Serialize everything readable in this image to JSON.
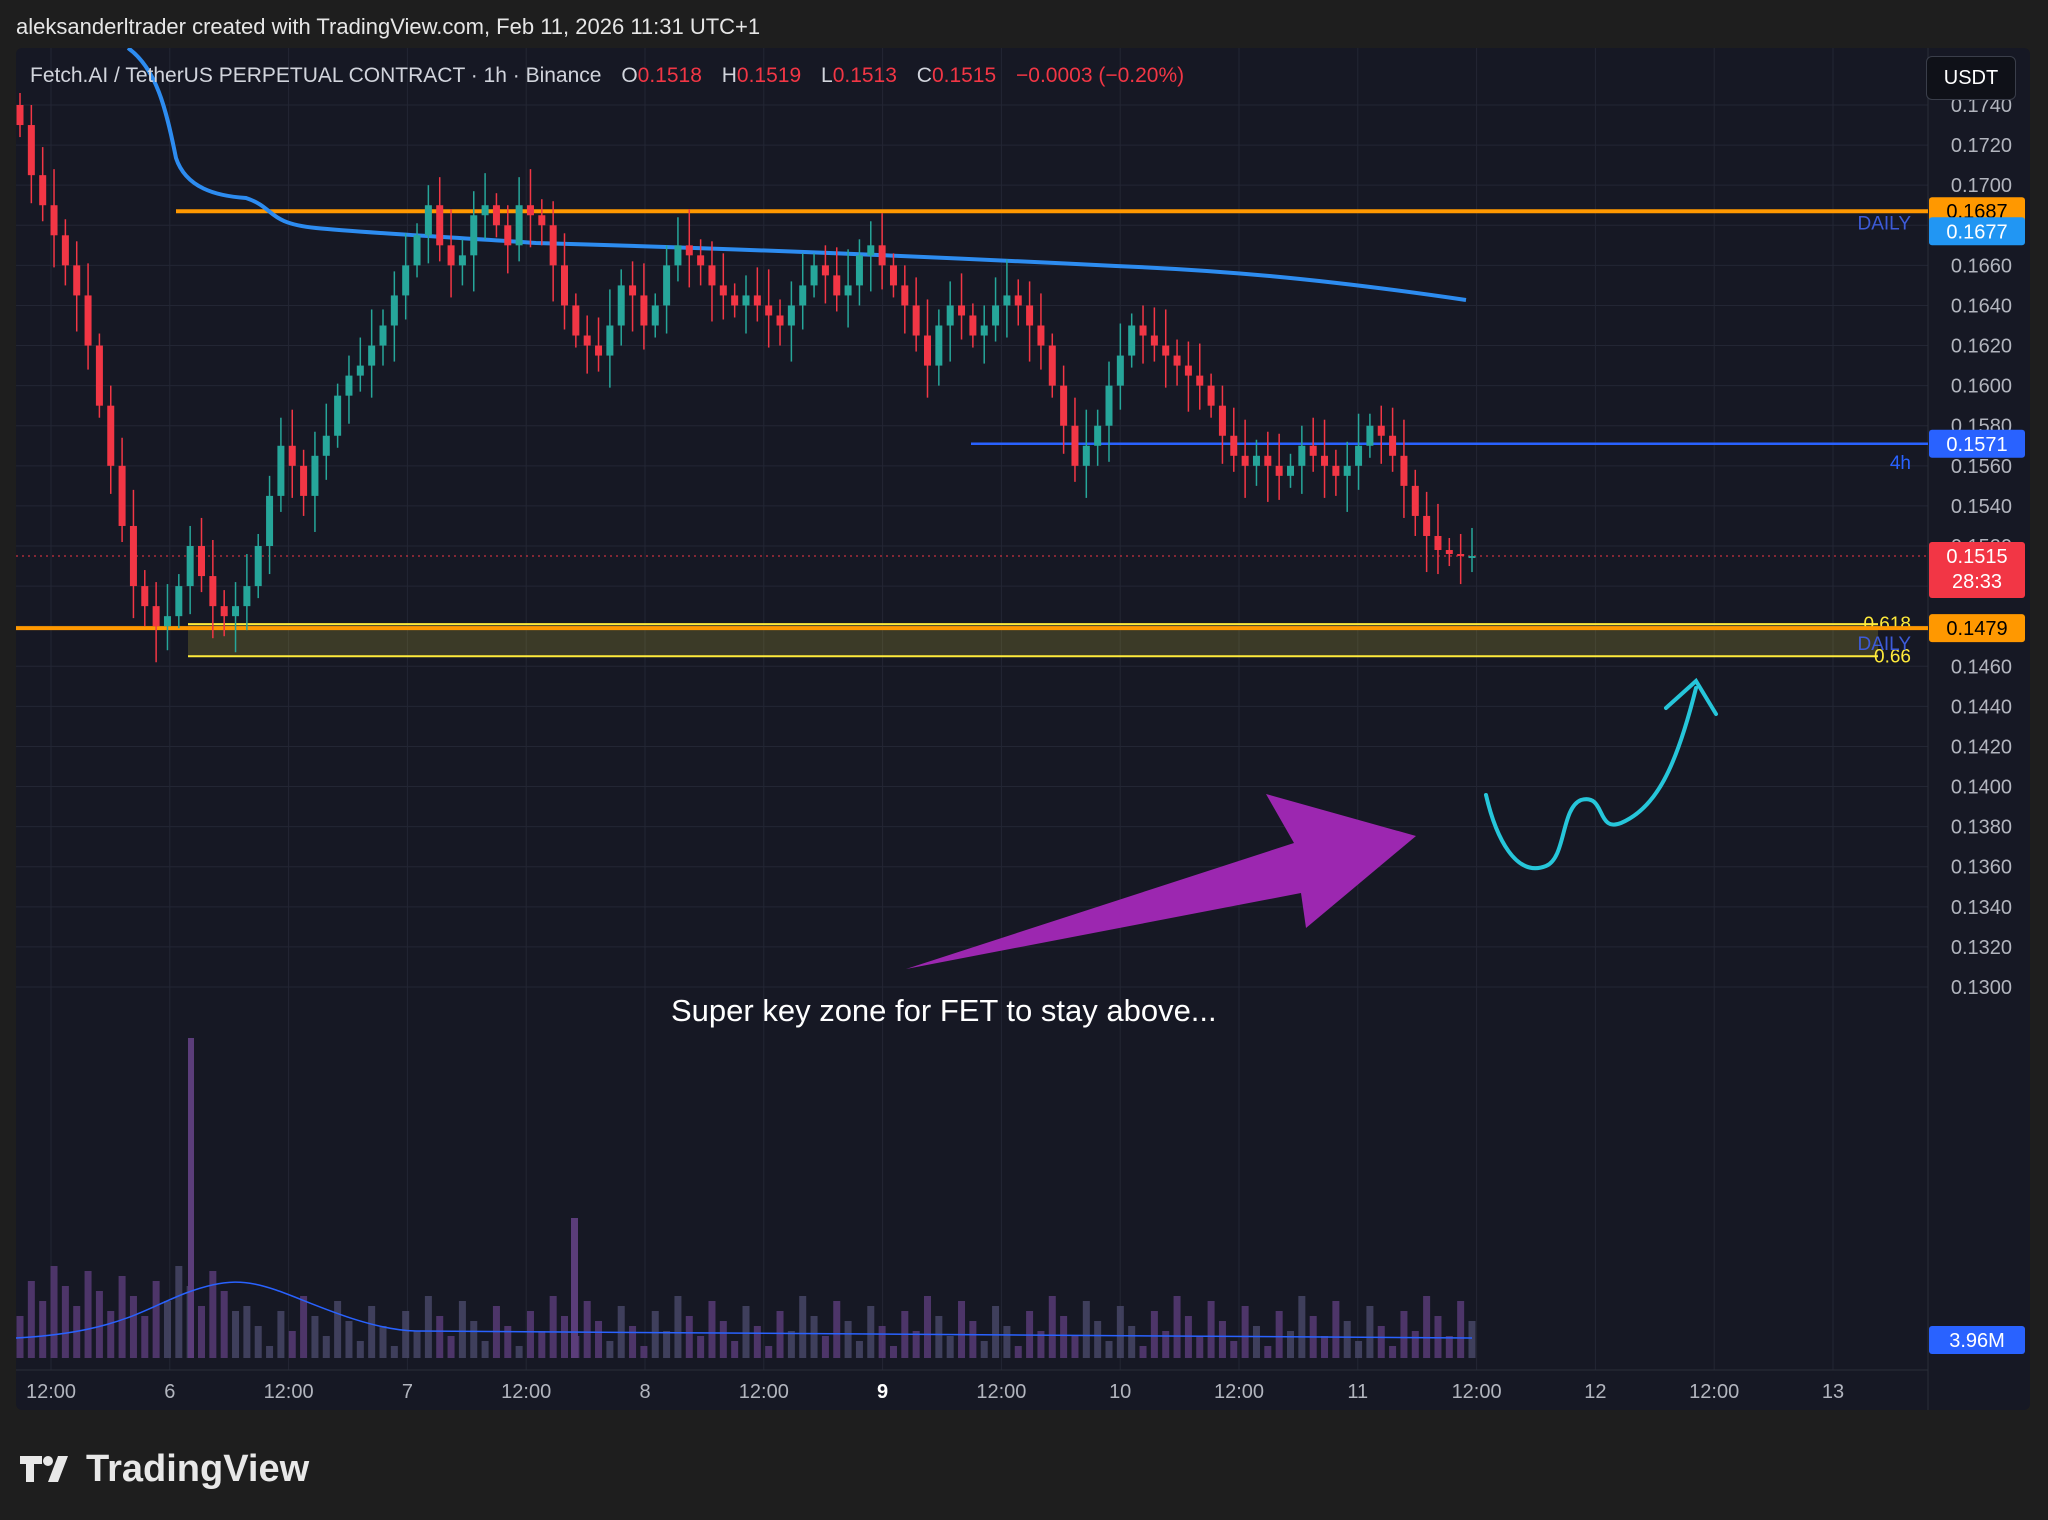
{
  "header": {
    "attribution": "aleksanderltrader created with TradingView.com, Feb 11, 2026 11:31 UTC+1"
  },
  "legend": {
    "symbol": "Fetch.AI / TetherUS PERPETUAL CONTRACT · 1h · Binance",
    "open_label": "O",
    "open": "0.1518",
    "high_label": "H",
    "high": "0.1519",
    "low_label": "L",
    "low": "0.1513",
    "close_label": "C",
    "close": "0.1515",
    "change": "−0.0003 (−0.20%)"
  },
  "currency_button": "USDT",
  "footer": {
    "brand": "TradingView"
  },
  "colors": {
    "up": "#26a69a",
    "down": "#f23645",
    "orange_level": "#ff9800",
    "vwap_line": "#2d8cf0",
    "blue_level": "#2962ff",
    "fib": "#ffeb3b",
    "arrow": "#9c27b0",
    "sketch": "#26c6da",
    "background": "#161824"
  },
  "chart_data": {
    "type": "candlestick",
    "title": "Fetch.AI / TetherUS PERPETUAL CONTRACT · 1h · Binance",
    "x_tick_labels": [
      "12:00",
      "6",
      "12:00",
      "7",
      "12:00",
      "8",
      "12:00",
      "9",
      "12:00",
      "10",
      "12:00",
      "11",
      "12:00",
      "12",
      "12:00",
      "13"
    ],
    "y_tick_labels": [
      "0.1740",
      "0.1720",
      "0.1700",
      "0.1680",
      "0.1660",
      "0.1640",
      "0.1620",
      "0.1600",
      "0.1580",
      "0.1560",
      "0.1540",
      "0.1520",
      "0.1500",
      "0.1480",
      "0.1460",
      "0.1440",
      "0.1420",
      "0.1400",
      "0.1380",
      "0.1360",
      "0.1340",
      "0.1320",
      "0.1300"
    ],
    "ylim": [
      0.1285,
      0.1775
    ],
    "price_series": [
      0.173,
      0.1705,
      0.169,
      0.1675,
      0.166,
      0.1645,
      0.162,
      0.159,
      0.156,
      0.153,
      0.15,
      0.149,
      0.148,
      0.1485,
      0.15,
      0.152,
      0.1505,
      0.149,
      0.1485,
      0.149,
      0.15,
      0.152,
      0.1545,
      0.157,
      0.156,
      0.1545,
      0.1565,
      0.1575,
      0.1595,
      0.1605,
      0.161,
      0.162,
      0.163,
      0.1645,
      0.166,
      0.1675,
      0.169,
      0.167,
      0.166,
      0.1665,
      0.1685,
      0.169,
      0.168,
      0.167,
      0.169,
      0.1685,
      0.168,
      0.166,
      0.164,
      0.1625,
      0.162,
      0.1615,
      0.163,
      0.165,
      0.1645,
      0.163,
      0.164,
      0.166,
      0.167,
      0.1665,
      0.166,
      0.165,
      0.1645,
      0.164,
      0.1645,
      0.164,
      0.1635,
      0.163,
      0.164,
      0.165,
      0.166,
      0.1655,
      0.1645,
      0.165,
      0.1665,
      0.167,
      0.166,
      0.165,
      0.164,
      0.1625,
      0.161,
      0.163,
      0.164,
      0.1635,
      0.1625,
      0.163,
      0.164,
      0.1645,
      0.164,
      0.163,
      0.162,
      0.16,
      0.158,
      0.156,
      0.157,
      0.158,
      0.16,
      0.1615,
      0.163,
      0.1625,
      0.162,
      0.1615,
      0.161,
      0.1605,
      0.16,
      0.159,
      0.1575,
      0.1565,
      0.156,
      0.1565,
      0.156,
      0.1555,
      0.156,
      0.157,
      0.1565,
      0.156,
      0.1555,
      0.156,
      0.157,
      0.158,
      0.1575,
      0.1565,
      0.155,
      0.1535,
      0.1525,
      0.1518,
      0.1516,
      0.1515,
      0.1515
    ],
    "overlays": [
      {
        "name": "DAILY",
        "price": 0.1687,
        "label": "0.1687"
      },
      {
        "name": "DAILY",
        "price": 0.1677,
        "label": "0.1677"
      },
      {
        "name": "4h",
        "price": 0.1571,
        "label": "0.1571"
      },
      {
        "name": "DAILY",
        "price": 0.1479,
        "label": "0.1479"
      }
    ],
    "last_price": {
      "label": "0.1515",
      "countdown": "28:33"
    },
    "fib_levels": [
      {
        "label": "0.618",
        "price": 0.1481
      },
      {
        "label": "0.66",
        "price": 0.1465
      }
    ],
    "volume_label": "3.96M",
    "annotation": "Super key zone for FET to stay above..."
  }
}
